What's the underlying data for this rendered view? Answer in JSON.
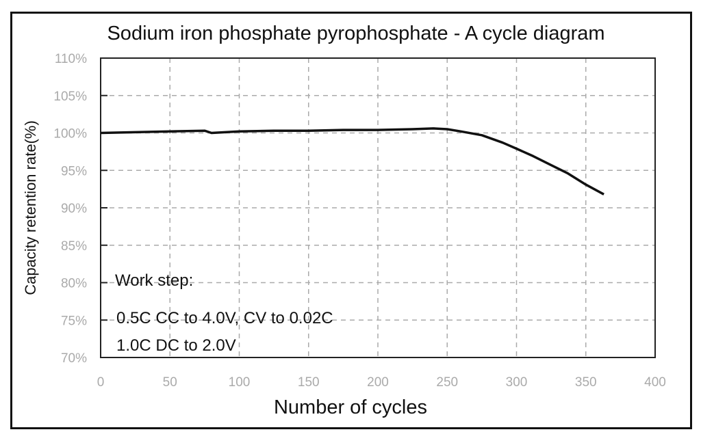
{
  "chart_data": {
    "type": "line",
    "title": "Sodium iron phosphate pyrophosphate - A cycle diagram",
    "xlabel": "Number of cycles",
    "ylabel": "Capacity retention rate(%)",
    "xlim": [
      0,
      400
    ],
    "ylim": [
      70,
      110
    ],
    "xticks": [
      "0",
      "50",
      "100",
      "150",
      "200",
      "250",
      "300",
      "350",
      "400"
    ],
    "yticks": [
      "70%",
      "75%",
      "80%",
      "85%",
      "90%",
      "95%",
      "100%",
      "105%",
      "110%"
    ],
    "grid": true,
    "grid_style": "dashed",
    "line_color": "#111111",
    "x": [
      0,
      25,
      50,
      75,
      80,
      100,
      125,
      150,
      175,
      200,
      225,
      240,
      250,
      260,
      275,
      290,
      300,
      312,
      325,
      337,
      350,
      363
    ],
    "y": [
      100.0,
      100.1,
      100.2,
      100.3,
      100.0,
      100.2,
      100.3,
      100.3,
      100.4,
      100.4,
      100.5,
      100.6,
      100.5,
      100.2,
      99.7,
      98.7,
      97.9,
      96.9,
      95.7,
      94.6,
      93.1,
      91.8
    ],
    "annotations": [
      "Work step:",
      "0.5C CC to 4.0V, CV to 0.02C",
      "1.0C DC to 2.0V"
    ]
  }
}
